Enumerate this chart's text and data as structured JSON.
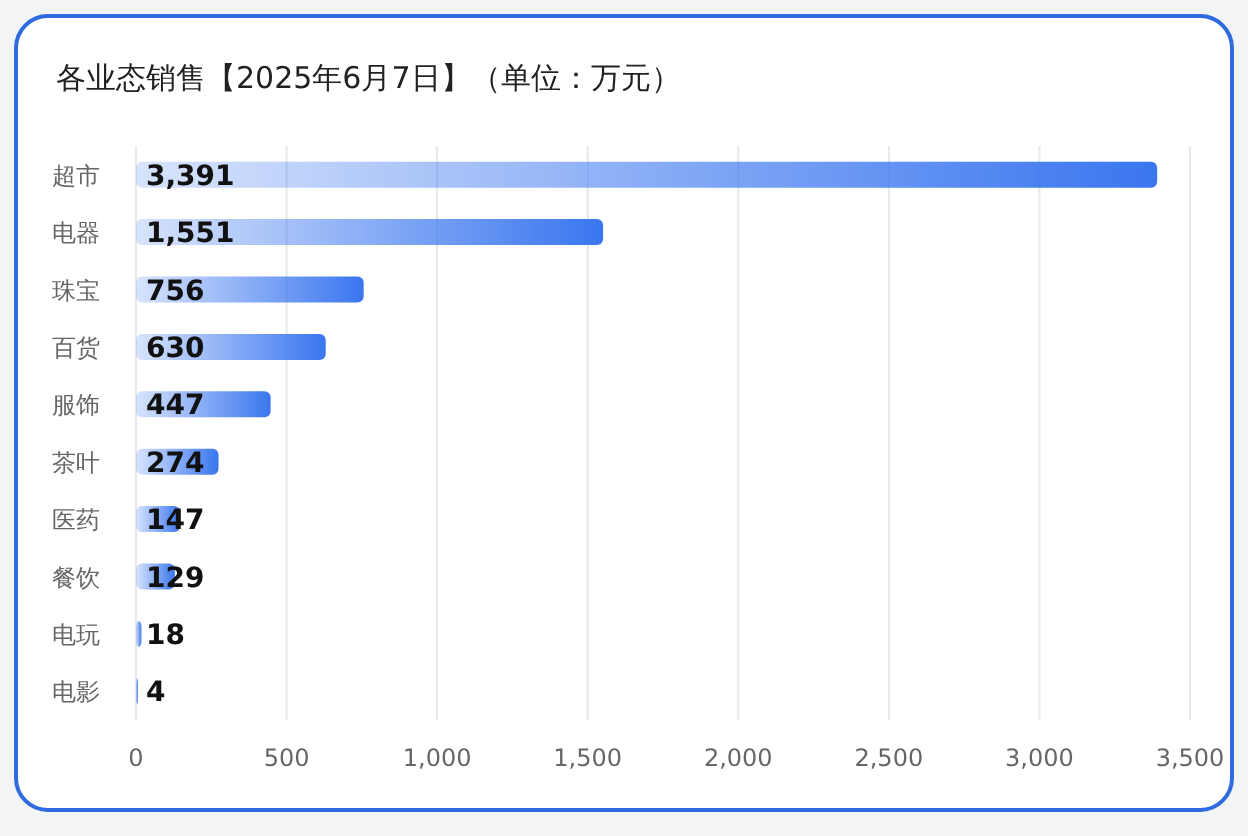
{
  "chart_data": {
    "type": "bar",
    "orientation": "horizontal",
    "title": "各业态销售【2025年6月7日】（单位：万元）",
    "categories": [
      "超市",
      "电器",
      "珠宝",
      "百货",
      "服饰",
      "茶叶",
      "医药",
      "餐饮",
      "电玩",
      "电影"
    ],
    "values": [
      3391,
      1551,
      756,
      630,
      447,
      274,
      147,
      129,
      18,
      4
    ],
    "value_labels": [
      "3,391",
      "1,551",
      "756",
      "630",
      "447",
      "274",
      "147",
      "129",
      "18",
      "4"
    ],
    "color": "#3a76ef",
    "xlim": [
      0,
      3500
    ],
    "xticks": [
      0,
      500,
      {
        "value": 1000,
        "label": "1,000"
      },
      {
        "value": 1500,
        "label": "1,500"
      },
      {
        "value": 2000,
        "label": "2,000"
      },
      {
        "value": 2500,
        "label": "2,500"
      },
      {
        "value": 3000,
        "label": "3,000"
      },
      {
        "value": 3500,
        "label": "3,500"
      }
    ],
    "grid": "x"
  }
}
